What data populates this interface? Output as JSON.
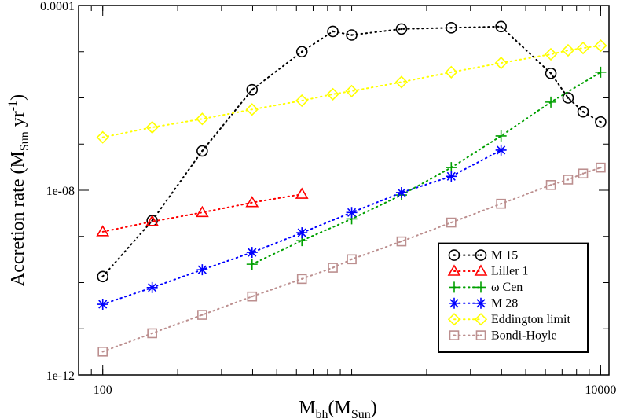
{
  "chart_data": {
    "type": "line",
    "log_x": true,
    "log_y": true,
    "xlabel": [
      "M",
      "bh",
      "(M",
      "Sun",
      ")"
    ],
    "ylabel": [
      "Accretion rate (M",
      "Sun",
      " yr",
      "-1",
      ")"
    ],
    "xlim": [
      80,
      10800
    ],
    "ylim": [
      1e-12,
      0.0001
    ],
    "xticks": [
      100,
      10000
    ],
    "yticks": [
      1e-12,
      {
        "value": 1e-08,
        "label": "1e-08"
      },
      0.0001
    ],
    "legend": "lower right",
    "series": [
      {
        "name": "M 15",
        "color": "#000000",
        "marker": "circle-dot",
        "x": [
          100,
          158,
          251,
          398,
          631,
          840,
          1000,
          1585,
          2512,
          3981,
          6310,
          7400,
          8500,
          10000
        ],
        "values": [
          1.35e-10,
          2.2e-09,
          7.1e-08,
          1.5e-06,
          1e-05,
          2.75e-05,
          2.3e-05,
          3.1e-05,
          3.3e-05,
          3.5e-05,
          3.4e-06,
          1e-06,
          5e-07,
          3e-07
        ]
      },
      {
        "name": "Liller 1",
        "color": "#ff0000",
        "marker": "triangle",
        "x": [
          100,
          158,
          251,
          398,
          631
        ],
        "values": [
          1.26e-09,
          2.1e-09,
          3.3e-09,
          5.4e-09,
          8.2e-09
        ]
      },
      {
        "name": "ω Cen",
        "color": "#00a000",
        "marker": "plus",
        "x": [
          398,
          631,
          1000,
          1585,
          2512,
          3981,
          6310,
          10000
        ],
        "values": [
          2.5e-10,
          8.1e-10,
          2.4e-09,
          7.9e-09,
          3.1e-08,
          1.5e-07,
          8.1e-07,
          3.6e-06
        ]
      },
      {
        "name": "M 28",
        "color": "#0000ff",
        "marker": "asterisk",
        "x": [
          100,
          158,
          251,
          398,
          631,
          1000,
          1585,
          2512,
          3981
        ],
        "values": [
          3.4e-11,
          7.8e-11,
          1.9e-10,
          4.5e-10,
          1.2e-09,
          3.3e-09,
          8.9e-09,
          2e-08,
          7.4e-08
        ]
      },
      {
        "name": "Eddington limit",
        "color": "#ffff00",
        "marker": "diamond",
        "x": [
          100,
          158,
          251,
          398,
          631,
          840,
          1000,
          1585,
          2512,
          3981,
          6310,
          7400,
          8500,
          10000
        ],
        "values": [
          1.4e-07,
          2.3e-07,
          3.5e-07,
          5.6e-07,
          8.7e-07,
          1.2e-06,
          1.4e-06,
          2.2e-06,
          3.6e-06,
          5.7e-06,
          8.8e-06,
          1.07e-05,
          1.2e-05,
          1.35e-05
        ]
      },
      {
        "name": "Bondi-Hoyle",
        "color": "#bc8f8f",
        "marker": "square-dot",
        "x": [
          100,
          158,
          251,
          398,
          631,
          840,
          1000,
          1585,
          2512,
          3981,
          6310,
          7400,
          8500,
          10000
        ],
        "values": [
          3.2e-12,
          8e-12,
          2e-11,
          5e-11,
          1.2e-10,
          2.1e-10,
          3.2e-10,
          7.8e-10,
          2e-09,
          5.1e-09,
          1.3e-08,
          1.7e-08,
          2.3e-08,
          3.1e-08
        ]
      }
    ]
  }
}
